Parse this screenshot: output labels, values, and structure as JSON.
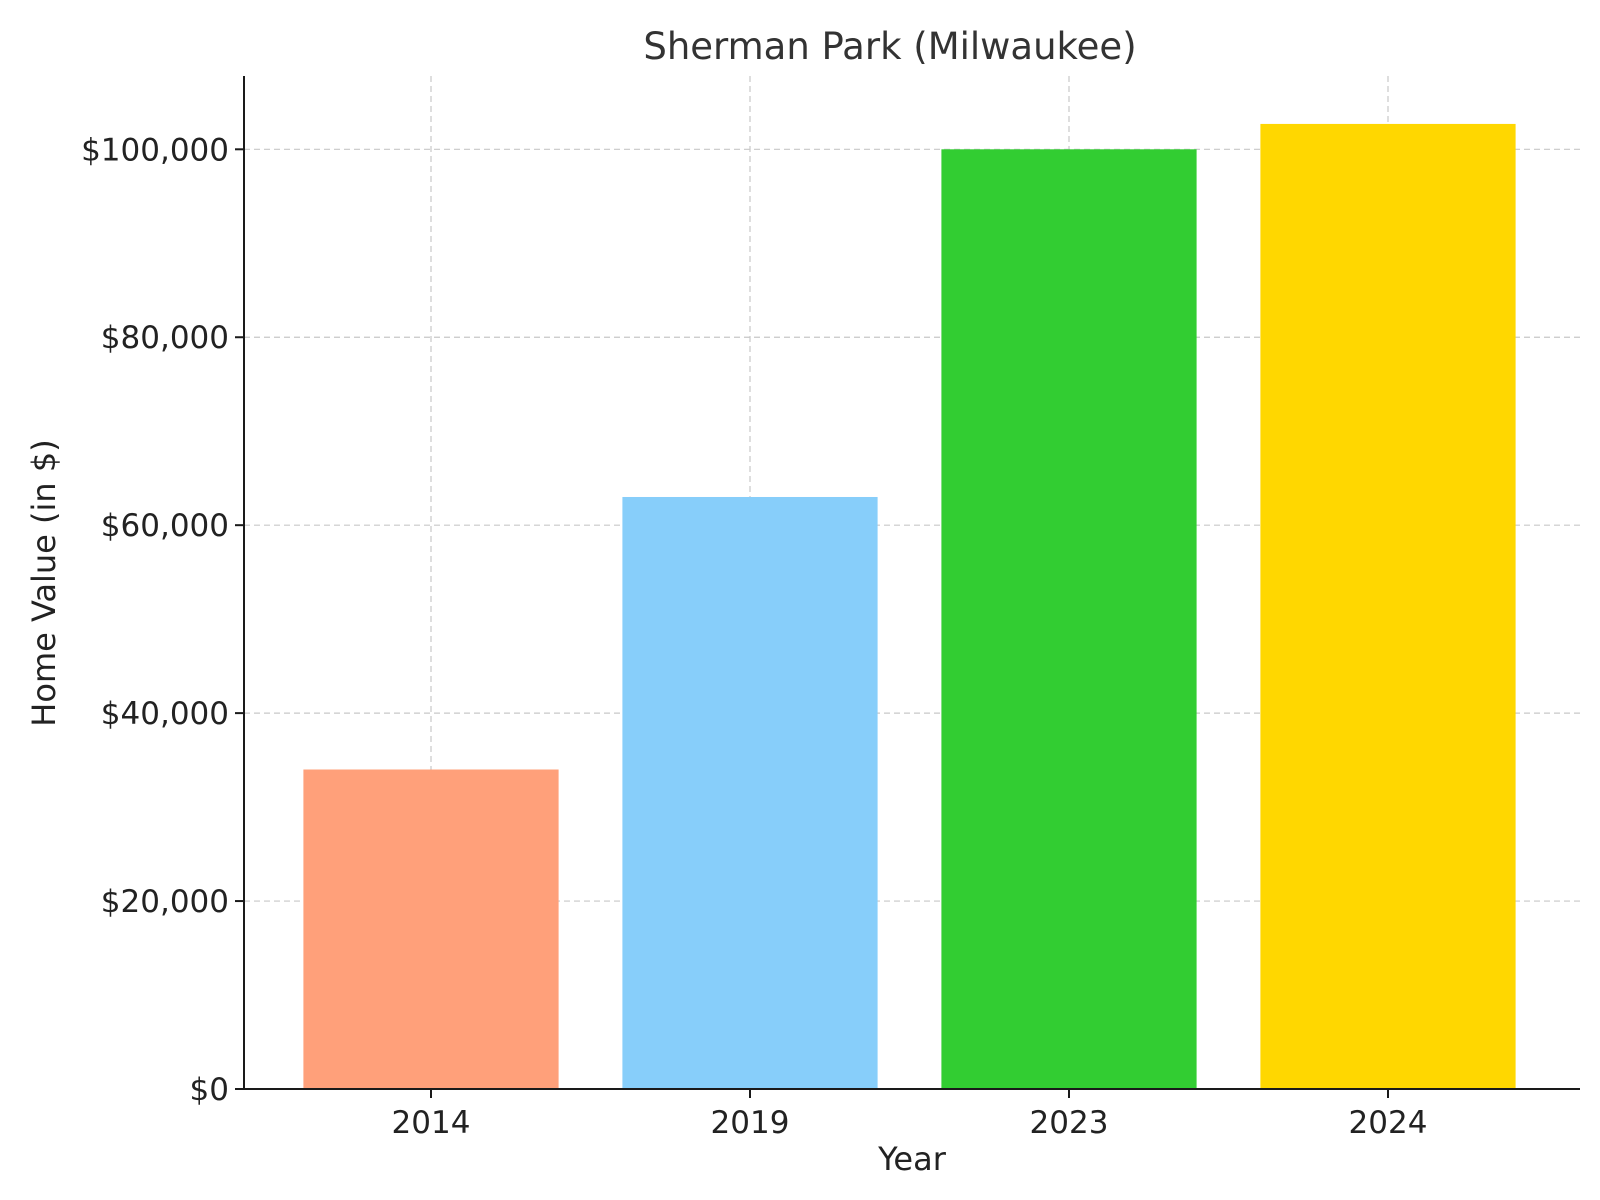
{
  "chart_data": {
    "type": "bar",
    "title": "Sherman Park (Milwaukee)",
    "xlabel": "Year",
    "ylabel": "Home Value (in $)",
    "categories": [
      "2014",
      "2019",
      "2023",
      "2024"
    ],
    "values": [
      34000,
      63000,
      100000,
      102700
    ],
    "colors": [
      "#FFA07A",
      "#87CEFA",
      "#32CD32",
      "#FFD700"
    ],
    "ylim": [
      0,
      107800
    ],
    "yticks": [
      0,
      20000,
      40000,
      60000,
      80000,
      100000
    ],
    "ytick_labels": [
      "$0",
      "$20,000",
      "$40,000",
      "$60,000",
      "$80,000",
      "$100,000"
    ],
    "grid": true
  }
}
